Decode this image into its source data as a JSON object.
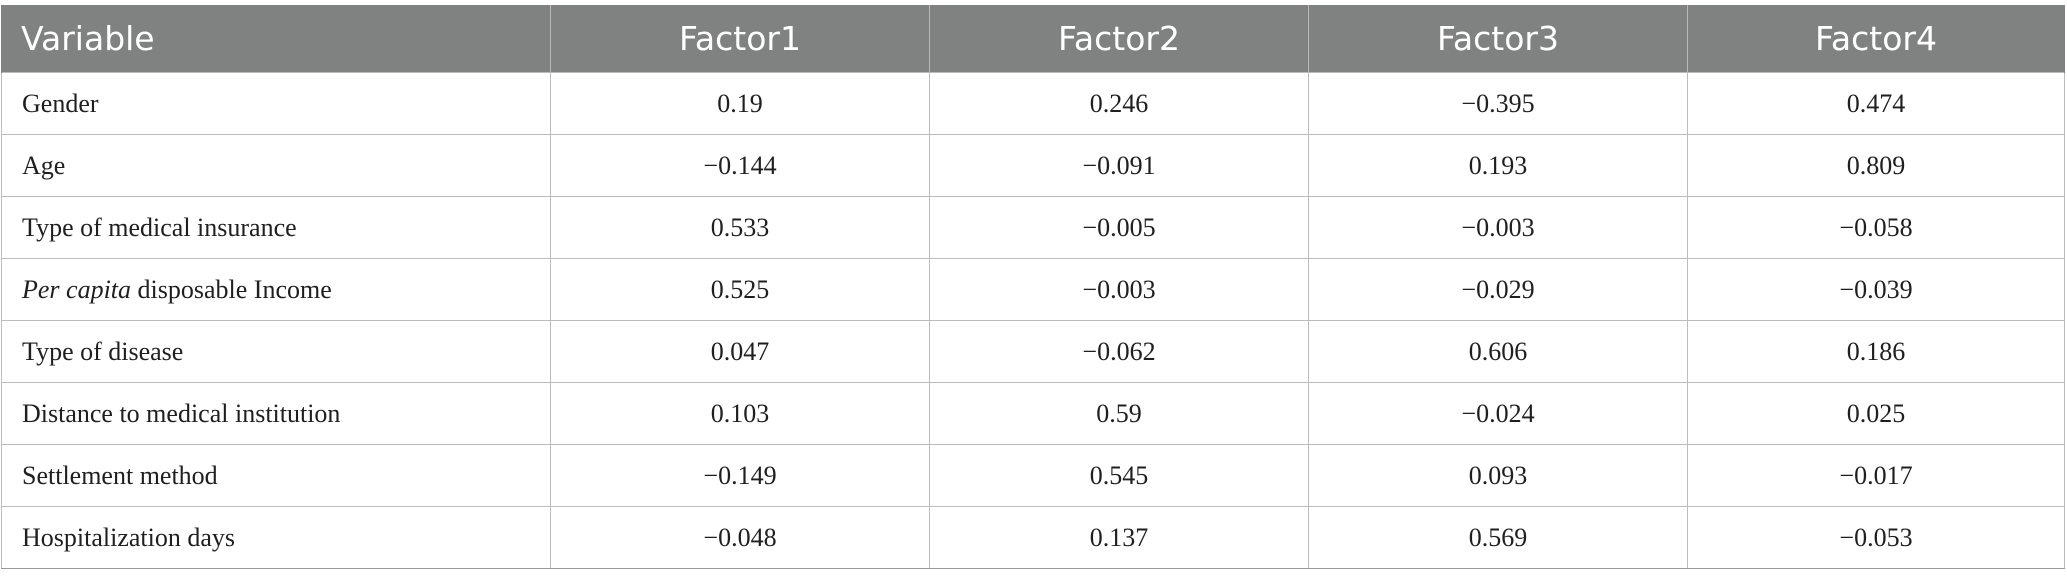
{
  "table": {
    "headers": [
      "Variable",
      "Factor1",
      "Factor2",
      "Factor3",
      "Factor4"
    ],
    "rows": [
      {
        "label_italic": "",
        "label": "Gender",
        "values": [
          "0.19",
          "0.246",
          "−0.395",
          "0.474"
        ]
      },
      {
        "label_italic": "",
        "label": "Age",
        "values": [
          "−0.144",
          "−0.091",
          "0.193",
          "0.809"
        ]
      },
      {
        "label_italic": "",
        "label": "Type of medical insurance",
        "values": [
          "0.533",
          "−0.005",
          "−0.003",
          "−0.058"
        ]
      },
      {
        "label_italic": "Per capita",
        "label": " disposable Income",
        "values": [
          "0.525",
          "−0.003",
          "−0.029",
          "−0.039"
        ]
      },
      {
        "label_italic": "",
        "label": "Type of disease",
        "values": [
          "0.047",
          "−0.062",
          "0.606",
          "0.186"
        ]
      },
      {
        "label_italic": "",
        "label": "Distance to medical institution",
        "values": [
          "0.103",
          "0.59",
          "−0.024",
          "0.025"
        ]
      },
      {
        "label_italic": "",
        "label": "Settlement method",
        "values": [
          "−0.149",
          "0.545",
          "0.093",
          "−0.017"
        ]
      },
      {
        "label_italic": "",
        "label": "Hospitalization days",
        "values": [
          "−0.048",
          "0.137",
          "0.569",
          "−0.053"
        ]
      }
    ]
  },
  "colors": {
    "header_bg": "#808281",
    "header_text": "#ffffff",
    "grid": "#bcbcbc"
  }
}
